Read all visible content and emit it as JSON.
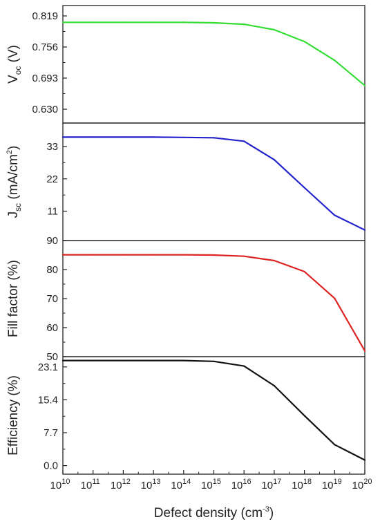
{
  "chart_data": {
    "type": "line",
    "x_values": [
      10,
      11,
      12,
      13,
      14,
      15,
      16,
      17,
      18,
      19,
      20
    ],
    "x_tick_base": "10",
    "x_tick_exponents": [
      "10",
      "11",
      "12",
      "13",
      "14",
      "15",
      "16",
      "17",
      "18",
      "19",
      "20"
    ],
    "x_scale": "log",
    "x_range": [
      10,
      20
    ],
    "xlabel": {
      "main": "Defect density (cm",
      "sup": "-3",
      "tail": ")"
    },
    "panels": [
      {
        "key": "voc",
        "ylabel": {
          "main": "V",
          "sub": "oc",
          "tail": " (V)"
        },
        "ylim": [
          0.602,
          0.84
        ],
        "yticks": [
          0.63,
          0.693,
          0.756,
          0.819
        ],
        "ytick_labels": [
          "0.630",
          "0.693",
          "0.756",
          "0.819"
        ],
        "color": "#33dd33",
        "series": {
          "x": [
            10,
            11,
            12,
            13,
            14,
            15,
            16,
            17,
            18,
            19,
            20
          ],
          "y": [
            0.806,
            0.806,
            0.806,
            0.806,
            0.806,
            0.805,
            0.802,
            0.791,
            0.767,
            0.729,
            0.678
          ]
        }
      },
      {
        "key": "jsc",
        "ylabel": {
          "main": "J",
          "sub": "sc",
          "tail": " (mA/cm",
          "sup": "2",
          "tail2": ")"
        },
        "ylim": [
          1.0,
          41.0
        ],
        "yticks": [
          11,
          22,
          33
        ],
        "ytick_labels": [
          "11",
          "22",
          "33"
        ],
        "color": "#2222cc",
        "series": {
          "x": [
            10,
            11,
            12,
            13,
            14,
            15,
            16,
            17,
            18,
            19,
            20
          ],
          "y": [
            36.2,
            36.2,
            36.2,
            36.2,
            36.1,
            36.0,
            34.8,
            28.5,
            19.0,
            9.6,
            4.6
          ]
        }
      },
      {
        "key": "ff",
        "ylabel": {
          "main": "Fill factor (%)"
        },
        "ylim": [
          50,
          90
        ],
        "yticks": [
          50,
          60,
          70,
          80,
          90
        ],
        "ytick_labels": [
          "50",
          "60",
          "70",
          "80",
          "90"
        ],
        "color": "#dd2222",
        "series": {
          "x": [
            10,
            11,
            12,
            13,
            14,
            15,
            16,
            17,
            18,
            19,
            20
          ],
          "y": [
            85.1,
            85.1,
            85.1,
            85.1,
            85.1,
            85.0,
            84.6,
            83.1,
            79.3,
            70.1,
            52.0
          ]
        }
      },
      {
        "key": "eff",
        "ylabel": {
          "main": "Efficiency (%)"
        },
        "ylim": [
          -2.0,
          25.5
        ],
        "yticks": [
          0.0,
          7.7,
          15.4,
          23.1
        ],
        "ytick_labels": [
          "0.0",
          "7.7",
          "15.4",
          "23.1"
        ],
        "color": "#111111",
        "series": {
          "x": [
            10,
            11,
            12,
            13,
            14,
            15,
            16,
            17,
            18,
            19,
            20
          ],
          "y": [
            24.6,
            24.6,
            24.6,
            24.6,
            24.6,
            24.4,
            23.3,
            18.7,
            11.7,
            4.9,
            1.3
          ]
        }
      }
    ]
  }
}
